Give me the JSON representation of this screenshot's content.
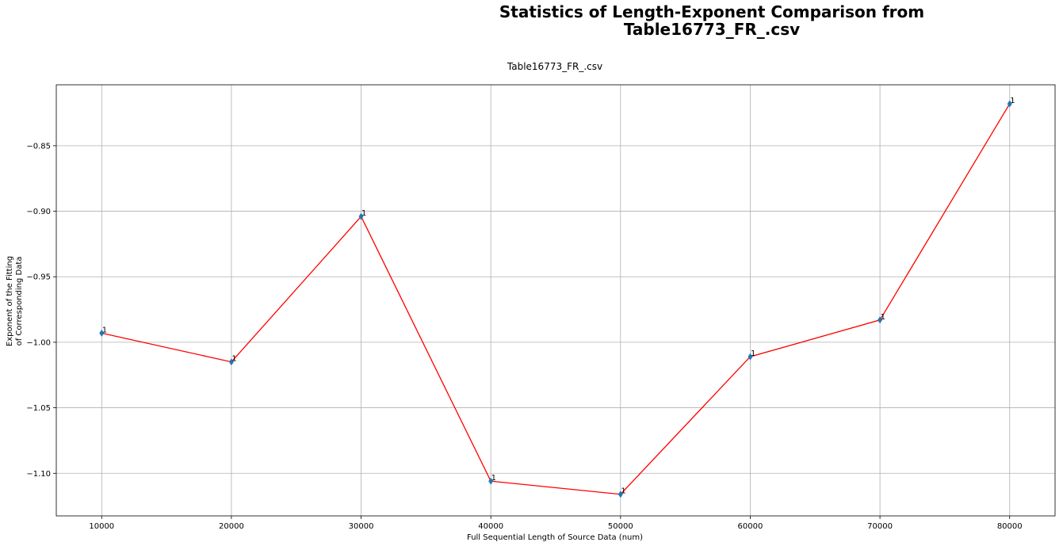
{
  "figure": {
    "suptitle_line1": "Statistics of Length-Exponent Comparison from",
    "suptitle_line2": "Table16773_FR_.csv"
  },
  "chart_data": {
    "type": "line",
    "title": "Table16773_FR_.csv",
    "xlabel": "Full Sequential Length of Source Data (num)",
    "ylabel_line1": "Exponent of the Fitting",
    "ylabel_line2": "of Corresponding Data",
    "x": [
      10000,
      20000,
      30000,
      40000,
      50000,
      60000,
      70000,
      80000
    ],
    "series": [
      {
        "values": [
          -0.993,
          -1.015,
          -0.904,
          -1.106,
          -1.116,
          -1.011,
          -0.983,
          -0.818
        ],
        "line_color": "#ff0000",
        "marker": "diamond",
        "marker_color": "#1f77b4"
      }
    ],
    "point_labels": [
      "1",
      "1",
      "1",
      "1",
      "1",
      "1",
      "1",
      "1"
    ],
    "xlim": [
      6500,
      83500
    ],
    "ylim": [
      -1.1325,
      -0.8035
    ],
    "x_ticks": [
      10000,
      20000,
      30000,
      40000,
      50000,
      60000,
      70000,
      80000
    ],
    "x_tick_labels": [
      "10000",
      "20000",
      "30000",
      "40000",
      "50000",
      "60000",
      "70000",
      "80000"
    ],
    "y_ticks": [
      -0.85,
      -0.9,
      -0.95,
      -1.0,
      -1.05,
      -1.1
    ],
    "y_tick_labels": [
      "−0.85",
      "−0.90",
      "−0.95",
      "−1.00",
      "−1.05",
      "−1.10"
    ],
    "grid": true
  }
}
